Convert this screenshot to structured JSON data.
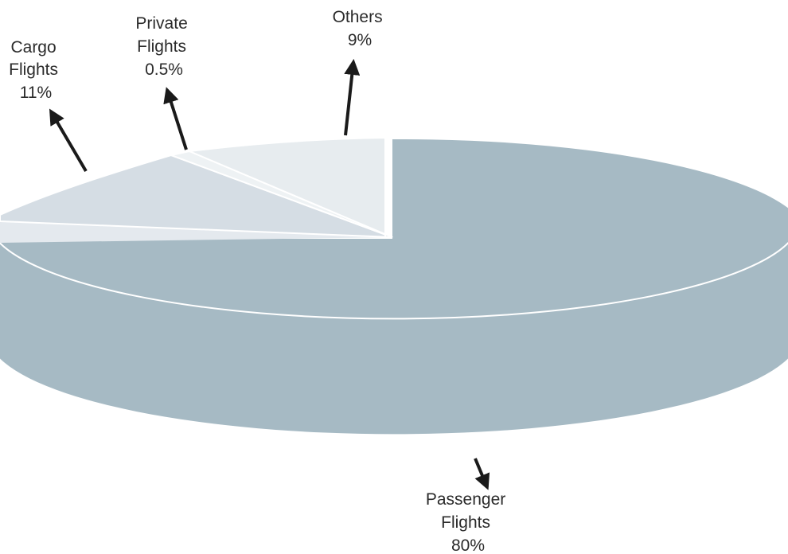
{
  "chart_data": {
    "type": "pie",
    "three_d": true,
    "title": "",
    "slices": [
      {
        "label": "Passenger Flights",
        "line1": "Passenger",
        "line2": "Flights",
        "value_label": "80%",
        "value": 80,
        "color": "#a6bac4"
      },
      {
        "label": "Cargo Flights",
        "line1": "Cargo",
        "line2": "Flights",
        "value_label": "11%",
        "value": 11,
        "color": "#d5dde4"
      },
      {
        "label": "Private Flights",
        "line1": "Private",
        "line2": "Flights",
        "value_label": "0.5%",
        "value": 0.5,
        "color": "#eef2f4"
      },
      {
        "label": "Others",
        "line1": "Others",
        "line2": "",
        "value_label": "9%",
        "value": 9,
        "color": "#e7ecef"
      }
    ]
  }
}
